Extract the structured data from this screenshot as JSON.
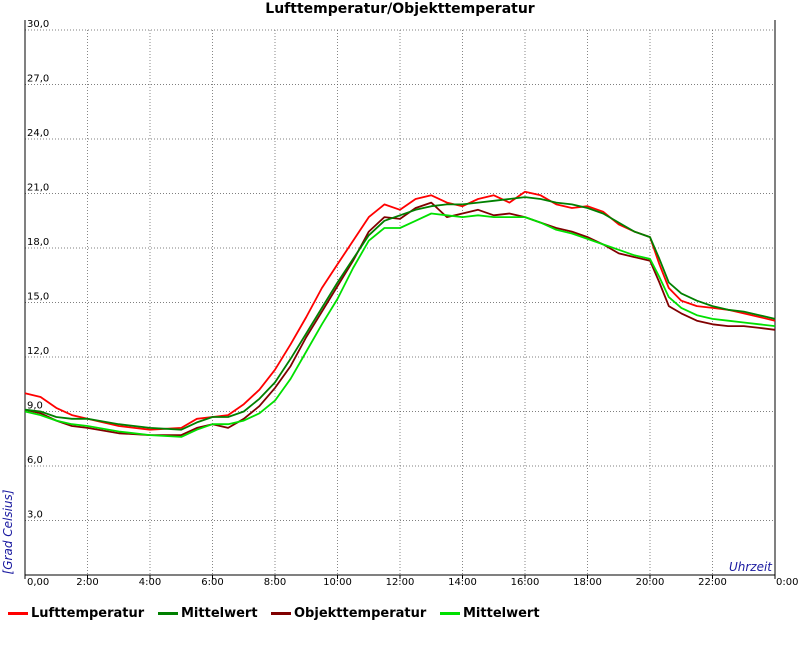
{
  "chart_data": {
    "type": "line",
    "title": "Lufttemperatur/Objekttemperatur",
    "xlabel": "Uhrzeit",
    "ylabel": "[Grad Celsius]",
    "x_ticks": [
      "0,00",
      "2:00",
      "4:00",
      "6:00",
      "8:00",
      "10:00",
      "12:00",
      "14:00",
      "16:00",
      "18:00",
      "20:00",
      "22:00",
      "0:00"
    ],
    "y_ticks": [
      "3,0",
      "6,0",
      "9,0",
      "12,0",
      "15,0",
      "18,0",
      "21,0",
      "24,0",
      "27,0",
      "30,0"
    ],
    "xlim": [
      0,
      24
    ],
    "ylim": [
      0,
      30
    ],
    "grid": true,
    "legend": "bottom",
    "series": [
      {
        "name": "Lufttemperatur",
        "color": "#ff0000",
        "points": [
          [
            0,
            10.0
          ],
          [
            0.5,
            9.8
          ],
          [
            1,
            9.2
          ],
          [
            1.5,
            8.8
          ],
          [
            2,
            8.6
          ],
          [
            3,
            8.2
          ],
          [
            4,
            8.0
          ],
          [
            5,
            8.1
          ],
          [
            5.5,
            8.6
          ],
          [
            6,
            8.7
          ],
          [
            6.5,
            8.8
          ],
          [
            7,
            9.4
          ],
          [
            7.5,
            10.2
          ],
          [
            8,
            11.3
          ],
          [
            8.5,
            12.7
          ],
          [
            9,
            14.2
          ],
          [
            9.5,
            15.8
          ],
          [
            10,
            17.1
          ],
          [
            10.5,
            18.4
          ],
          [
            11,
            19.7
          ],
          [
            11.5,
            20.4
          ],
          [
            12,
            20.1
          ],
          [
            12.5,
            20.7
          ],
          [
            13,
            20.9
          ],
          [
            13.5,
            20.5
          ],
          [
            14,
            20.3
          ],
          [
            14.5,
            20.7
          ],
          [
            15,
            20.9
          ],
          [
            15.5,
            20.5
          ],
          [
            16,
            21.1
          ],
          [
            16.5,
            20.9
          ],
          [
            17,
            20.4
          ],
          [
            17.5,
            20.2
          ],
          [
            18,
            20.3
          ],
          [
            18.5,
            20.0
          ],
          [
            19,
            19.3
          ],
          [
            19.5,
            18.9
          ],
          [
            20,
            18.6
          ],
          [
            20.3,
            17.1
          ],
          [
            20.6,
            15.8
          ],
          [
            21,
            15.1
          ],
          [
            21.5,
            14.8
          ],
          [
            22,
            14.7
          ],
          [
            22.5,
            14.6
          ],
          [
            23,
            14.4
          ],
          [
            23.5,
            14.2
          ],
          [
            24,
            14.0
          ]
        ]
      },
      {
        "name": "Mittelwert",
        "color": "#008000",
        "points": [
          [
            0,
            9.1
          ],
          [
            0.5,
            9.0
          ],
          [
            1,
            8.7
          ],
          [
            1.5,
            8.6
          ],
          [
            2,
            8.6
          ],
          [
            3,
            8.3
          ],
          [
            4,
            8.1
          ],
          [
            5,
            8.0
          ],
          [
            5.5,
            8.4
          ],
          [
            6,
            8.7
          ],
          [
            6.5,
            8.7
          ],
          [
            7,
            9.0
          ],
          [
            7.5,
            9.7
          ],
          [
            8,
            10.6
          ],
          [
            8.5,
            11.9
          ],
          [
            9,
            13.3
          ],
          [
            9.5,
            14.7
          ],
          [
            10,
            16.1
          ],
          [
            10.5,
            17.4
          ],
          [
            11,
            18.7
          ],
          [
            11.5,
            19.5
          ],
          [
            12,
            19.8
          ],
          [
            12.5,
            20.1
          ],
          [
            13,
            20.3
          ],
          [
            13.5,
            20.4
          ],
          [
            14,
            20.4
          ],
          [
            14.5,
            20.5
          ],
          [
            15,
            20.6
          ],
          [
            15.5,
            20.7
          ],
          [
            16,
            20.8
          ],
          [
            16.5,
            20.7
          ],
          [
            17,
            20.5
          ],
          [
            17.5,
            20.4
          ],
          [
            18,
            20.2
          ],
          [
            18.5,
            19.9
          ],
          [
            19,
            19.4
          ],
          [
            19.5,
            18.9
          ],
          [
            20,
            18.6
          ],
          [
            20.3,
            17.4
          ],
          [
            20.6,
            16.1
          ],
          [
            21,
            15.5
          ],
          [
            21.5,
            15.1
          ],
          [
            22,
            14.8
          ],
          [
            22.5,
            14.6
          ],
          [
            23,
            14.5
          ],
          [
            23.5,
            14.3
          ],
          [
            24,
            14.1
          ]
        ]
      },
      {
        "name": "Objekttemperatur",
        "color": "#800000",
        "points": [
          [
            0,
            9.1
          ],
          [
            0.5,
            8.9
          ],
          [
            1,
            8.5
          ],
          [
            1.5,
            8.2
          ],
          [
            2,
            8.1
          ],
          [
            3,
            7.8
          ],
          [
            4,
            7.7
          ],
          [
            5,
            7.7
          ],
          [
            5.5,
            8.1
          ],
          [
            6,
            8.3
          ],
          [
            6.5,
            8.1
          ],
          [
            7,
            8.6
          ],
          [
            7.5,
            9.3
          ],
          [
            8,
            10.3
          ],
          [
            8.5,
            11.5
          ],
          [
            9,
            13.1
          ],
          [
            9.5,
            14.5
          ],
          [
            10,
            15.9
          ],
          [
            10.5,
            17.3
          ],
          [
            11,
            18.9
          ],
          [
            11.5,
            19.7
          ],
          [
            12,
            19.6
          ],
          [
            12.5,
            20.2
          ],
          [
            13,
            20.5
          ],
          [
            13.5,
            19.7
          ],
          [
            14,
            19.9
          ],
          [
            14.5,
            20.1
          ],
          [
            15,
            19.8
          ],
          [
            15.5,
            19.9
          ],
          [
            16,
            19.7
          ],
          [
            16.5,
            19.4
          ],
          [
            17,
            19.1
          ],
          [
            17.5,
            18.9
          ],
          [
            18,
            18.6
          ],
          [
            18.5,
            18.2
          ],
          [
            19,
            17.7
          ],
          [
            19.5,
            17.5
          ],
          [
            20,
            17.3
          ],
          [
            20.3,
            16.1
          ],
          [
            20.6,
            14.8
          ],
          [
            21,
            14.4
          ],
          [
            21.5,
            14.0
          ],
          [
            22,
            13.8
          ],
          [
            22.5,
            13.7
          ],
          [
            23,
            13.7
          ],
          [
            23.5,
            13.6
          ],
          [
            24,
            13.5
          ]
        ]
      },
      {
        "name": "Mittelwert",
        "color": "#00e000",
        "points": [
          [
            0,
            9.0
          ],
          [
            0.5,
            8.8
          ],
          [
            1,
            8.5
          ],
          [
            1.5,
            8.3
          ],
          [
            2,
            8.2
          ],
          [
            3,
            7.9
          ],
          [
            4,
            7.7
          ],
          [
            5,
            7.6
          ],
          [
            5.5,
            8.0
          ],
          [
            6,
            8.3
          ],
          [
            6.5,
            8.3
          ],
          [
            7,
            8.5
          ],
          [
            7.5,
            8.9
          ],
          [
            8,
            9.6
          ],
          [
            8.5,
            10.8
          ],
          [
            9,
            12.3
          ],
          [
            9.5,
            13.8
          ],
          [
            10,
            15.2
          ],
          [
            10.5,
            16.9
          ],
          [
            11,
            18.4
          ],
          [
            11.5,
            19.1
          ],
          [
            12,
            19.1
          ],
          [
            12.5,
            19.5
          ],
          [
            13,
            19.9
          ],
          [
            13.5,
            19.8
          ],
          [
            14,
            19.7
          ],
          [
            14.5,
            19.8
          ],
          [
            15,
            19.7
          ],
          [
            15.5,
            19.7
          ],
          [
            16,
            19.7
          ],
          [
            16.5,
            19.4
          ],
          [
            17,
            19.0
          ],
          [
            17.5,
            18.8
          ],
          [
            18,
            18.5
          ],
          [
            18.5,
            18.2
          ],
          [
            19,
            17.9
          ],
          [
            19.5,
            17.6
          ],
          [
            20,
            17.4
          ],
          [
            20.3,
            16.4
          ],
          [
            20.6,
            15.3
          ],
          [
            21,
            14.7
          ],
          [
            21.5,
            14.3
          ],
          [
            22,
            14.1
          ],
          [
            22.5,
            14.0
          ],
          [
            23,
            13.9
          ],
          [
            23.5,
            13.8
          ],
          [
            24,
            13.7
          ]
        ]
      }
    ]
  }
}
